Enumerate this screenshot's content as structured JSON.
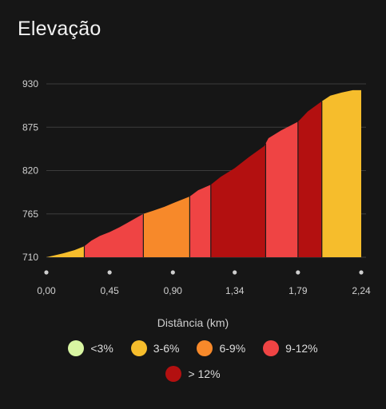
{
  "title": "Elevação",
  "chart_data": {
    "type": "area",
    "xlabel": "Distância (km)",
    "ylabel": "",
    "xlim": [
      0,
      2.24
    ],
    "ylim": [
      710,
      930
    ],
    "y_ticks": [
      930,
      875,
      820,
      765,
      710
    ],
    "x_ticks": [
      0,
      0.45,
      0.9,
      1.34,
      1.79,
      2.24
    ],
    "x_tick_labels": [
      "0,00",
      "0,45",
      "0,90",
      "1,34",
      "1,79",
      "2,24"
    ],
    "grid": "horizontal",
    "profile": [
      [
        0.0,
        710
      ],
      [
        0.05,
        712
      ],
      [
        0.12,
        715
      ],
      [
        0.2,
        719
      ],
      [
        0.27,
        724
      ],
      [
        0.32,
        731
      ],
      [
        0.38,
        737
      ],
      [
        0.45,
        742
      ],
      [
        0.52,
        748
      ],
      [
        0.58,
        754
      ],
      [
        0.64,
        760
      ],
      [
        0.69,
        765
      ],
      [
        0.76,
        769
      ],
      [
        0.84,
        774
      ],
      [
        0.92,
        780
      ],
      [
        1.02,
        787
      ],
      [
        1.08,
        795
      ],
      [
        1.17,
        802
      ],
      [
        1.24,
        812
      ],
      [
        1.34,
        823
      ],
      [
        1.44,
        837
      ],
      [
        1.55,
        851
      ],
      [
        1.58,
        861
      ],
      [
        1.67,
        871
      ],
      [
        1.79,
        882
      ],
      [
        1.86,
        895
      ],
      [
        1.96,
        908
      ],
      [
        2.02,
        915
      ],
      [
        2.1,
        919
      ],
      [
        2.18,
        922
      ],
      [
        2.24,
        922
      ]
    ],
    "segments": [
      {
        "from": 0.0,
        "to": 0.27,
        "category": "3-6%"
      },
      {
        "from": 0.27,
        "to": 0.69,
        "category": "9-12%"
      },
      {
        "from": 0.69,
        "to": 1.02,
        "category": "6-9%"
      },
      {
        "from": 1.02,
        "to": 1.17,
        "category": "9-12%"
      },
      {
        "from": 1.17,
        "to": 1.56,
        "category": "> 12%"
      },
      {
        "from": 1.56,
        "to": 1.79,
        "category": "9-12%"
      },
      {
        "from": 1.79,
        "to": 1.96,
        "category": "> 12%"
      },
      {
        "from": 1.96,
        "to": 2.24,
        "category": "3-6%"
      }
    ],
    "legend": [
      {
        "label": "<3%",
        "color": "#d8f5a2"
      },
      {
        "label": "3-6%",
        "color": "#f6bd2c"
      },
      {
        "label": "6-9%",
        "color": "#f7892a"
      },
      {
        "label": "9-12%",
        "color": "#ef4444"
      },
      {
        "label": "> 12%",
        "color": "#b31010"
      }
    ]
  }
}
